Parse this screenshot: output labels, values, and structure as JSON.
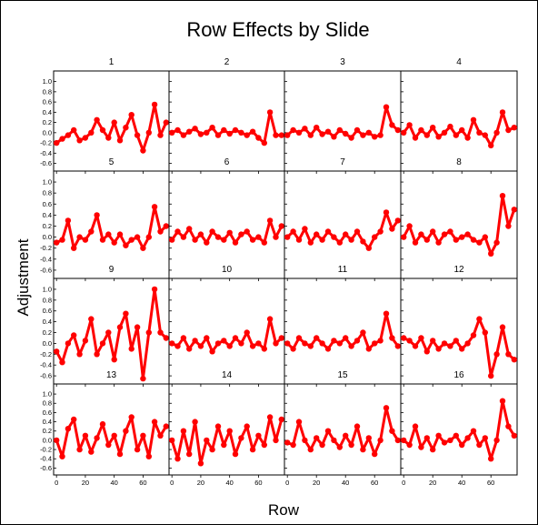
{
  "chart_data": {
    "type": "line",
    "title": "Row Effects by Slide",
    "xlabel": "Row",
    "ylabel": "Adjustment",
    "xlim": [
      -2,
      78
    ],
    "ylim": [
      -0.75,
      1.1
    ],
    "xticks": [
      0,
      20,
      40,
      60
    ],
    "yticks": [
      -0.6,
      -0.4,
      -0.2,
      0.0,
      0.2,
      0.4,
      0.6,
      0.8,
      1.0
    ],
    "ytick_labels": [
      "-0.6",
      "-0.4",
      "-0.2",
      "0.0",
      "0.2",
      "0.4",
      "0.6",
      "0.8",
      "1.0"
    ],
    "grid": false,
    "layout": "4x4 panels",
    "marker_color": "#ff0000",
    "series": [
      {
        "name": "1",
        "x": [
          0,
          4,
          8,
          12,
          16,
          20,
          24,
          28,
          32,
          36,
          40,
          44,
          48,
          52,
          56,
          60,
          64,
          68,
          72,
          76
        ],
        "values": [
          -0.2,
          -0.12,
          -0.05,
          0.05,
          -0.15,
          -0.1,
          0.0,
          0.25,
          0.05,
          -0.1,
          0.2,
          -0.15,
          0.1,
          0.35,
          -0.05,
          -0.35,
          0.0,
          0.55,
          -0.05,
          0.2
        ]
      },
      {
        "name": "2",
        "x": [
          0,
          4,
          8,
          12,
          16,
          20,
          24,
          28,
          32,
          36,
          40,
          44,
          48,
          52,
          56,
          60,
          64,
          68,
          72,
          76
        ],
        "values": [
          0.0,
          0.05,
          -0.05,
          0.02,
          0.08,
          -0.03,
          0.0,
          0.1,
          -0.05,
          0.05,
          -0.02,
          0.05,
          0.0,
          -0.05,
          0.02,
          -0.1,
          -0.2,
          0.4,
          -0.05,
          -0.05
        ]
      },
      {
        "name": "3",
        "x": [
          0,
          4,
          8,
          12,
          16,
          20,
          24,
          28,
          32,
          36,
          40,
          44,
          48,
          52,
          56,
          60,
          64,
          68,
          72,
          76
        ],
        "values": [
          -0.05,
          0.05,
          0.0,
          0.08,
          -0.05,
          0.1,
          -0.03,
          0.02,
          -0.08,
          0.05,
          -0.02,
          -0.1,
          0.05,
          -0.05,
          0.0,
          -0.08,
          -0.05,
          0.5,
          0.15,
          0.05
        ]
      },
      {
        "name": "4",
        "x": [
          0,
          4,
          8,
          12,
          16,
          20,
          24,
          28,
          32,
          36,
          40,
          44,
          48,
          52,
          56,
          60,
          64,
          68,
          72,
          76
        ],
        "values": [
          0.0,
          0.15,
          -0.1,
          0.05,
          -0.05,
          0.1,
          -0.08,
          0.0,
          0.12,
          -0.05,
          0.05,
          -0.1,
          0.25,
          0.0,
          -0.05,
          -0.25,
          0.0,
          0.4,
          0.05,
          0.1
        ]
      },
      {
        "name": "5",
        "x": [
          0,
          4,
          8,
          12,
          16,
          20,
          24,
          28,
          32,
          36,
          40,
          44,
          48,
          52,
          56,
          60,
          64,
          68,
          72,
          76
        ],
        "values": [
          -0.1,
          -0.05,
          0.3,
          -0.2,
          0.0,
          -0.05,
          0.1,
          0.4,
          -0.05,
          0.05,
          -0.1,
          0.05,
          -0.15,
          -0.05,
          0.0,
          -0.2,
          0.0,
          0.55,
          0.1,
          0.2
        ]
      },
      {
        "name": "6",
        "x": [
          0,
          4,
          8,
          12,
          16,
          20,
          24,
          28,
          32,
          36,
          40,
          44,
          48,
          52,
          56,
          60,
          64,
          68,
          72,
          76
        ],
        "values": [
          -0.05,
          0.1,
          0.0,
          0.15,
          -0.05,
          0.05,
          -0.1,
          0.1,
          0.0,
          -0.05,
          0.08,
          -0.1,
          0.05,
          0.1,
          -0.05,
          0.0,
          -0.1,
          0.3,
          0.0,
          0.2
        ]
      },
      {
        "name": "7",
        "x": [
          0,
          4,
          8,
          12,
          16,
          20,
          24,
          28,
          32,
          36,
          40,
          44,
          48,
          52,
          56,
          60,
          64,
          68,
          72,
          76
        ],
        "values": [
          0.0,
          0.1,
          -0.05,
          0.15,
          -0.1,
          0.05,
          -0.05,
          0.1,
          0.0,
          -0.1,
          0.05,
          -0.05,
          0.1,
          -0.08,
          -0.2,
          0.0,
          0.1,
          0.45,
          0.15,
          0.3
        ]
      },
      {
        "name": "8",
        "x": [
          0,
          4,
          8,
          12,
          16,
          20,
          24,
          28,
          32,
          36,
          40,
          44,
          48,
          52,
          56,
          60,
          64,
          68,
          72,
          76
        ],
        "values": [
          0.0,
          0.2,
          -0.1,
          0.05,
          -0.05,
          0.1,
          -0.1,
          0.05,
          0.1,
          -0.05,
          0.0,
          0.05,
          -0.05,
          -0.1,
          0.0,
          -0.3,
          -0.1,
          0.75,
          0.2,
          0.5
        ]
      },
      {
        "name": "9",
        "x": [
          0,
          4,
          8,
          12,
          16,
          20,
          24,
          28,
          32,
          36,
          40,
          44,
          48,
          52,
          56,
          60,
          64,
          68,
          72,
          76
        ],
        "values": [
          -0.15,
          -0.35,
          0.0,
          0.15,
          -0.2,
          0.05,
          0.45,
          -0.2,
          0.0,
          0.2,
          -0.3,
          0.3,
          0.55,
          -0.1,
          0.3,
          -0.65,
          0.2,
          1.0,
          0.2,
          0.1
        ]
      },
      {
        "name": "10",
        "x": [
          0,
          4,
          8,
          12,
          16,
          20,
          24,
          28,
          32,
          36,
          40,
          44,
          48,
          52,
          56,
          60,
          64,
          68,
          72,
          76
        ],
        "values": [
          0.0,
          -0.05,
          0.1,
          -0.1,
          0.05,
          -0.05,
          0.1,
          -0.15,
          0.0,
          0.05,
          -0.05,
          0.1,
          0.0,
          0.2,
          -0.05,
          0.0,
          -0.1,
          0.45,
          0.0,
          0.1
        ]
      },
      {
        "name": "11",
        "x": [
          0,
          4,
          8,
          12,
          16,
          20,
          24,
          28,
          32,
          36,
          40,
          44,
          48,
          52,
          56,
          60,
          64,
          68,
          72,
          76
        ],
        "values": [
          0.0,
          -0.1,
          0.1,
          0.0,
          -0.05,
          0.1,
          0.0,
          -0.1,
          0.05,
          0.0,
          0.1,
          -0.05,
          0.05,
          0.2,
          -0.1,
          0.0,
          0.05,
          0.55,
          0.1,
          -0.05
        ]
      },
      {
        "name": "12",
        "x": [
          0,
          4,
          8,
          12,
          16,
          20,
          24,
          28,
          32,
          36,
          40,
          44,
          48,
          52,
          56,
          60,
          64,
          68,
          72,
          76
        ],
        "values": [
          0.1,
          0.05,
          -0.05,
          0.1,
          -0.15,
          0.05,
          -0.1,
          0.0,
          -0.05,
          0.05,
          -0.1,
          0.0,
          0.15,
          0.45,
          0.2,
          -0.6,
          -0.2,
          0.3,
          -0.2,
          -0.3
        ]
      },
      {
        "name": "13",
        "x": [
          0,
          4,
          8,
          12,
          16,
          20,
          24,
          28,
          32,
          36,
          40,
          44,
          48,
          52,
          56,
          60,
          64,
          68,
          72,
          76
        ],
        "values": [
          0.0,
          -0.35,
          0.25,
          0.45,
          -0.2,
          0.1,
          -0.25,
          0.05,
          0.35,
          -0.1,
          0.1,
          -0.3,
          0.2,
          0.5,
          -0.2,
          0.1,
          -0.35,
          0.4,
          0.1,
          0.3
        ]
      },
      {
        "name": "14",
        "x": [
          0,
          4,
          8,
          12,
          16,
          20,
          24,
          28,
          32,
          36,
          40,
          44,
          48,
          52,
          56,
          60,
          64,
          68,
          72,
          76
        ],
        "values": [
          0.0,
          -0.4,
          0.2,
          -0.3,
          0.4,
          -0.5,
          0.0,
          -0.2,
          0.3,
          -0.1,
          0.2,
          -0.3,
          0.05,
          0.3,
          -0.2,
          0.1,
          -0.1,
          0.5,
          0.0,
          0.45
        ]
      },
      {
        "name": "15",
        "x": [
          0,
          4,
          8,
          12,
          16,
          20,
          24,
          28,
          32,
          36,
          40,
          44,
          48,
          52,
          56,
          60,
          64,
          68,
          72,
          76
        ],
        "values": [
          -0.05,
          -0.1,
          0.4,
          0.0,
          -0.2,
          0.05,
          -0.1,
          0.2,
          0.0,
          -0.15,
          0.1,
          -0.1,
          0.3,
          -0.2,
          0.05,
          -0.3,
          0.0,
          0.7,
          0.2,
          0.0
        ]
      },
      {
        "name": "16",
        "x": [
          0,
          4,
          8,
          12,
          16,
          20,
          24,
          28,
          32,
          36,
          40,
          44,
          48,
          52,
          56,
          60,
          64,
          68,
          72,
          76
        ],
        "values": [
          0.0,
          -0.1,
          0.3,
          -0.15,
          0.05,
          -0.2,
          0.1,
          -0.05,
          0.0,
          0.1,
          -0.1,
          0.05,
          0.2,
          -0.1,
          0.05,
          -0.4,
          0.0,
          0.85,
          0.3,
          0.1
        ]
      }
    ]
  }
}
